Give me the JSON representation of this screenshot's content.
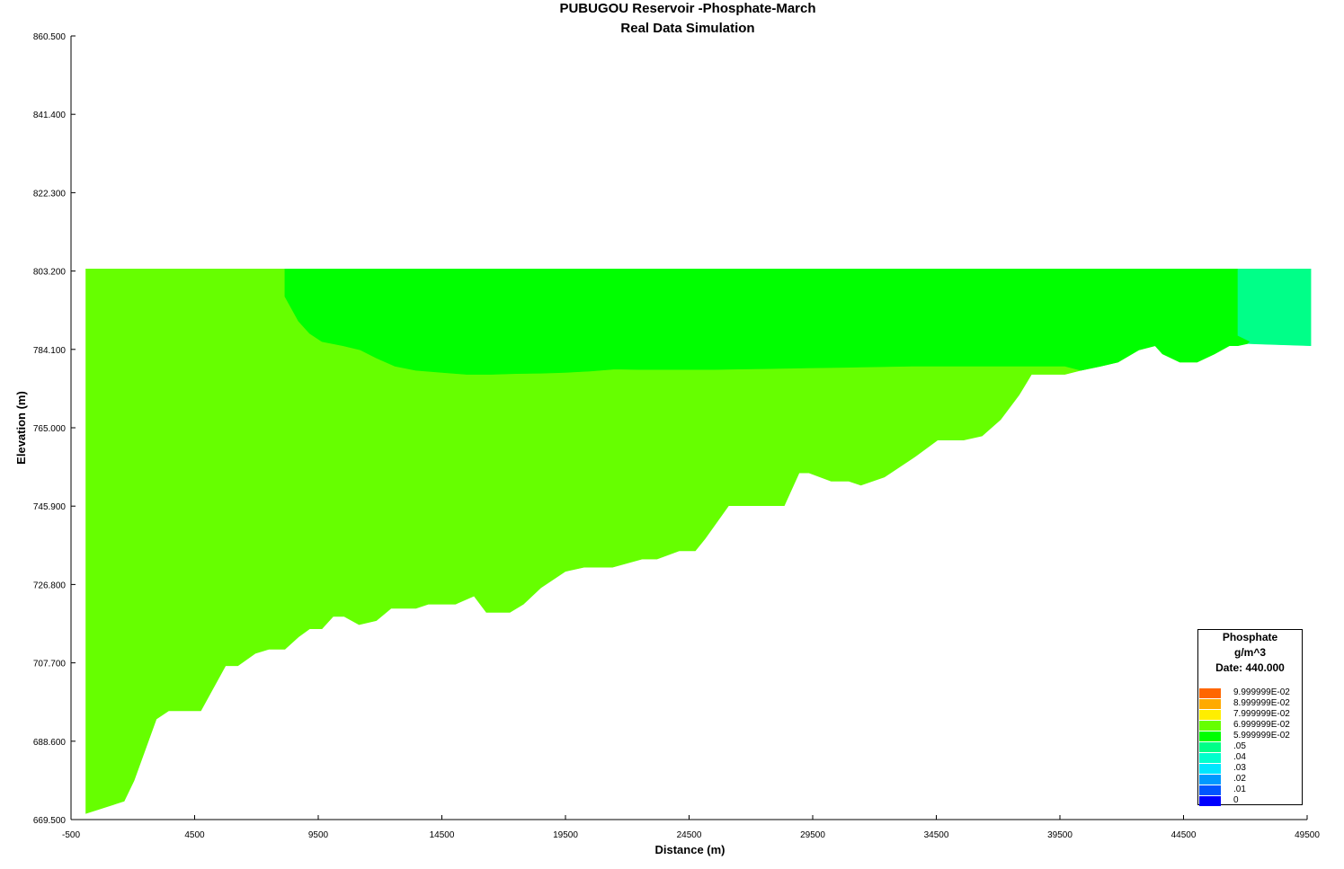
{
  "chart_data": {
    "type": "area",
    "title": "PUBUGOU Reservoir -Phosphate-March",
    "subtitle": "Real Data Simulation",
    "xlabel": "Distance (m)",
    "ylabel": "Elevation (m)",
    "xlim": [
      -500,
      49500
    ],
    "ylim": [
      669.5,
      860.5
    ],
    "x_ticks": [
      "-500",
      "4500",
      "9500",
      "14500",
      "19500",
      "24500",
      "29500",
      "34500",
      "39500",
      "44500",
      "49500"
    ],
    "y_ticks": [
      "669.500",
      "688.600",
      "707.700",
      "726.800",
      "745.900",
      "765.000",
      "784.100",
      "803.200",
      "822.300",
      "841.400",
      "860.500"
    ],
    "water_surface": 803.7,
    "zones": [
      {
        "value": "6.999999E-02",
        "color": "#66ff00",
        "points": [
          [
            100,
            671
          ],
          [
            1650,
            674
          ],
          [
            2050,
            679
          ],
          [
            2950,
            694
          ],
          [
            3450,
            696
          ],
          [
            4750,
            696
          ],
          [
            5750,
            707
          ],
          [
            6250,
            707
          ],
          [
            6950,
            710
          ],
          [
            7500,
            711
          ],
          [
            8150,
            711
          ],
          [
            8700,
            714
          ],
          [
            9150,
            716
          ],
          [
            9650,
            716
          ],
          [
            10100,
            719
          ],
          [
            10550,
            719
          ],
          [
            11150,
            717
          ],
          [
            11850,
            718
          ],
          [
            12450,
            721
          ],
          [
            13450,
            721
          ],
          [
            13950,
            722
          ],
          [
            14250,
            722
          ],
          [
            15050,
            722
          ],
          [
            15800,
            724
          ],
          [
            16300,
            720
          ],
          [
            17250,
            720
          ],
          [
            17800,
            722
          ],
          [
            18500,
            726
          ],
          [
            19500,
            730
          ],
          [
            20250,
            731
          ],
          [
            21400,
            731
          ],
          [
            22600,
            733
          ],
          [
            23200,
            733
          ],
          [
            24100,
            735
          ],
          [
            24750,
            735
          ],
          [
            25150,
            738
          ],
          [
            26100,
            746
          ],
          [
            27050,
            746
          ],
          [
            28350,
            746
          ],
          [
            28950,
            754
          ],
          [
            29350,
            754
          ],
          [
            30250,
            752
          ],
          [
            30950,
            752
          ],
          [
            31450,
            751
          ],
          [
            32400,
            753
          ],
          [
            33650,
            758
          ],
          [
            34550,
            762
          ],
          [
            35600,
            762
          ],
          [
            36350,
            763
          ],
          [
            37100,
            767
          ],
          [
            37850,
            773
          ],
          [
            38350,
            778
          ],
          [
            39200,
            778
          ],
          [
            39700,
            778
          ],
          [
            40350,
            779
          ],
          [
            41150,
            780
          ],
          [
            41850,
            781
          ],
          [
            42700,
            784
          ],
          [
            43350,
            785
          ],
          [
            43650,
            783
          ],
          [
            44350,
            781
          ],
          [
            45050,
            781
          ],
          [
            45750,
            783
          ],
          [
            46350,
            785
          ],
          [
            46700,
            785
          ],
          [
            46700,
            803.7
          ],
          [
            8150,
            803.7
          ],
          [
            100,
            803.7
          ]
        ]
      },
      {
        "value": "5.999999E-02",
        "color": "#00ff00",
        "points": [
          [
            8150,
            803.7
          ],
          [
            8150,
            797
          ],
          [
            8700,
            791
          ],
          [
            9150,
            788
          ],
          [
            9650,
            786
          ],
          [
            10500,
            785
          ],
          [
            11200,
            784
          ],
          [
            11850,
            782
          ],
          [
            12600,
            780
          ],
          [
            13450,
            779
          ],
          [
            14500,
            778.5
          ],
          [
            15500,
            778
          ],
          [
            16500,
            778
          ],
          [
            17500,
            778.2
          ],
          [
            18500,
            778.3
          ],
          [
            19500,
            778.5
          ],
          [
            20500,
            778.8
          ],
          [
            21500,
            779.3
          ],
          [
            22500,
            779.2
          ],
          [
            23500,
            779.2
          ],
          [
            24500,
            779.2
          ],
          [
            25500,
            779.2
          ],
          [
            26500,
            779.3
          ],
          [
            27500,
            779.4
          ],
          [
            28500,
            779.5
          ],
          [
            29500,
            779.6
          ],
          [
            30500,
            779.7
          ],
          [
            31500,
            779.8
          ],
          [
            32500,
            779.9
          ],
          [
            33500,
            780
          ],
          [
            34500,
            780
          ],
          [
            35500,
            780
          ],
          [
            36500,
            780
          ],
          [
            37500,
            780
          ],
          [
            38500,
            780
          ],
          [
            39700,
            780
          ],
          [
            40350,
            779
          ],
          [
            41150,
            780
          ],
          [
            41850,
            781
          ],
          [
            42700,
            784
          ],
          [
            43350,
            785
          ],
          [
            43650,
            783
          ],
          [
            44350,
            781
          ],
          [
            45050,
            781
          ],
          [
            45750,
            783
          ],
          [
            46350,
            785
          ],
          [
            46700,
            785
          ],
          [
            47100,
            785.5
          ],
          [
            47200,
            786
          ],
          [
            46700,
            787.5
          ],
          [
            46700,
            803.7
          ]
        ]
      },
      {
        "value": ".05",
        "color": "#00ff88",
        "points": [
          [
            46700,
            803.7
          ],
          [
            46700,
            787.5
          ],
          [
            47200,
            786
          ],
          [
            47100,
            785.5
          ],
          [
            49650,
            785
          ],
          [
            49650,
            803.7
          ]
        ]
      }
    ],
    "legend": {
      "title": "Phosphate",
      "unit": "g/m^3",
      "date_label": "Date: 440.000",
      "items": [
        {
          "label": "9.999999E-02",
          "color": "#ff6600"
        },
        {
          "label": "8.999999E-02",
          "color": "#ffaa00"
        },
        {
          "label": "7.999999E-02",
          "color": "#ffee00"
        },
        {
          "label": "6.999999E-02",
          "color": "#66ff00"
        },
        {
          "label": "5.999999E-02",
          "color": "#00ff00"
        },
        {
          "label": ".05",
          "color": "#00ff88"
        },
        {
          "label": ".04",
          "color": "#00ffcc"
        },
        {
          "label": ".03",
          "color": "#00e6ff"
        },
        {
          "label": ".02",
          "color": "#0099ff"
        },
        {
          "label": ".01",
          "color": "#0055ff"
        },
        {
          "label": "0",
          "color": "#0000ff"
        }
      ]
    }
  }
}
